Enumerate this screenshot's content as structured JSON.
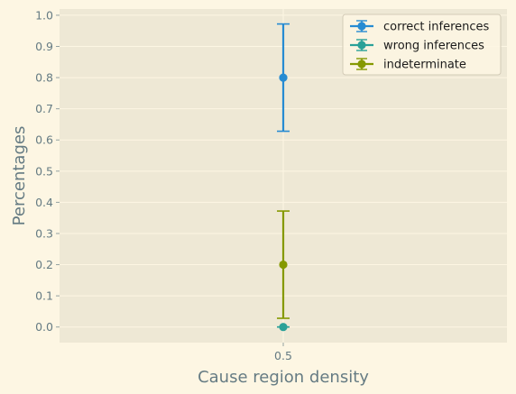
{
  "chart_data": {
    "type": "scatter",
    "x": [
      0.5
    ],
    "xticks": [
      "0.5"
    ],
    "xlabel": "Cause region density",
    "ylabel": "Percentages",
    "ylim": [
      -0.05,
      1.02
    ],
    "yticks": [
      "0.0",
      "0.1",
      "0.2",
      "0.3",
      "0.4",
      "0.5",
      "0.6",
      "0.7",
      "0.8",
      "0.9",
      "1.0"
    ],
    "grid": true,
    "legend_position": "top-right",
    "series": [
      {
        "name": "correct inferences",
        "values": [
          0.8
        ],
        "error": [
          0.172
        ],
        "color": "#268bd2"
      },
      {
        "name": "wrong inferences",
        "values": [
          0.0
        ],
        "error": [
          0.0
        ],
        "color": "#2aa198"
      },
      {
        "name": "indeterminate",
        "values": [
          0.2
        ],
        "error": [
          0.172
        ],
        "color": "#859900"
      }
    ],
    "plot_background": "#eee8d5",
    "figure_background": "#fdf6e3"
  }
}
